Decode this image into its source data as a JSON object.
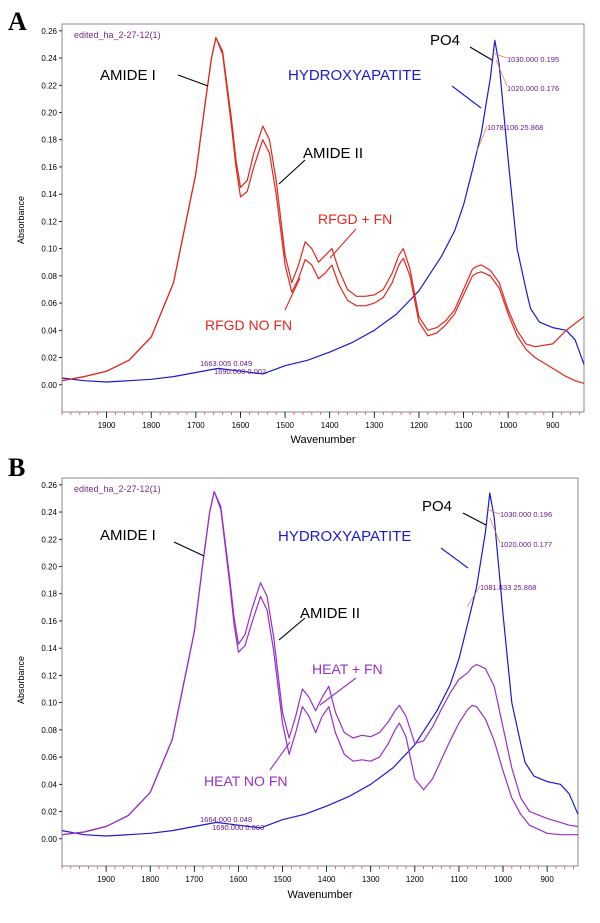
{
  "chart_data": [
    {
      "panel": "A",
      "type": "line",
      "note": "edited_ha_2-27-12(1)",
      "xlabel": "Wavenumber",
      "ylabel": "Absorbance",
      "xlim": [
        2000,
        830
      ],
      "ylim": [
        -0.02,
        0.265
      ],
      "x_ticks": [
        "1900",
        "1800",
        "1700",
        "1600",
        "1500",
        "1400",
        "1300",
        "1200",
        "1100",
        "1000",
        "900"
      ],
      "y_ticks": [
        "0.00",
        "0.02",
        "0.04",
        "0.06",
        "0.08",
        "0.10",
        "0.12",
        "0.14",
        "0.16",
        "0.18",
        "0.20",
        "0.22",
        "0.24",
        "0.26"
      ],
      "annotations": {
        "amide1": "AMIDE I",
        "amide2": "AMIDE II",
        "po4": "PO4",
        "hydroxyapatite": "HYDROXYAPATITE",
        "with_fn": "RFGD + FN",
        "no_fn": "RFGD NO FN"
      },
      "cursor_labels": [
        "1030.000  0.195",
        "1020.000  0.176",
        "1078.106  25.868",
        "1663.005  0.049",
        "1690.000  0.002"
      ],
      "series": [
        {
          "color": "#1a1ad6",
          "x": [
            2000,
            1950,
            1900,
            1850,
            1800,
            1750,
            1700,
            1650,
            1600,
            1550,
            1500,
            1450,
            1400,
            1350,
            1300,
            1250,
            1200,
            1150,
            1120,
            1100,
            1080,
            1060,
            1050,
            1040,
            1030,
            1020,
            1000,
            980,
            960,
            950,
            930,
            900,
            870,
            850,
            830
          ],
          "y": [
            0.005,
            0.003,
            0.002,
            0.003,
            0.004,
            0.006,
            0.009,
            0.012,
            0.01,
            0.008,
            0.014,
            0.018,
            0.024,
            0.031,
            0.04,
            0.052,
            0.069,
            0.094,
            0.113,
            0.132,
            0.158,
            0.185,
            0.205,
            0.225,
            0.253,
            0.235,
            0.165,
            0.1,
            0.07,
            0.056,
            0.046,
            0.042,
            0.04,
            0.033,
            0.015
          ]
        },
        {
          "color": "#e0281e",
          "x": [
            2000,
            1950,
            1900,
            1850,
            1800,
            1750,
            1700,
            1680,
            1665,
            1655,
            1640,
            1620,
            1610,
            1600,
            1585,
            1570,
            1550,
            1535,
            1520,
            1500,
            1485,
            1470,
            1455,
            1440,
            1425,
            1410,
            1395,
            1380,
            1360,
            1340,
            1320,
            1300,
            1280,
            1260,
            1245,
            1235,
            1220,
            1200,
            1180,
            1160,
            1140,
            1120,
            1100,
            1080,
            1070,
            1060,
            1040,
            1020,
            1000,
            980,
            960,
            940,
            900,
            870,
            850,
            830
          ],
          "y": [
            0.003,
            0.006,
            0.01,
            0.018,
            0.035,
            0.075,
            0.155,
            0.205,
            0.24,
            0.255,
            0.245,
            0.195,
            0.165,
            0.145,
            0.15,
            0.17,
            0.19,
            0.18,
            0.15,
            0.095,
            0.075,
            0.088,
            0.105,
            0.1,
            0.09,
            0.095,
            0.1,
            0.085,
            0.07,
            0.065,
            0.065,
            0.066,
            0.07,
            0.082,
            0.095,
            0.1,
            0.085,
            0.05,
            0.04,
            0.042,
            0.047,
            0.055,
            0.07,
            0.085,
            0.087,
            0.088,
            0.084,
            0.075,
            0.055,
            0.04,
            0.03,
            0.028,
            0.03,
            0.04,
            0.045,
            0.05
          ]
        },
        {
          "color": "#e0281e",
          "x": [
            2000,
            1950,
            1900,
            1850,
            1800,
            1750,
            1700,
            1680,
            1665,
            1655,
            1640,
            1620,
            1610,
            1600,
            1585,
            1570,
            1550,
            1535,
            1520,
            1500,
            1485,
            1470,
            1455,
            1440,
            1425,
            1410,
            1395,
            1380,
            1360,
            1340,
            1320,
            1300,
            1280,
            1260,
            1245,
            1235,
            1220,
            1200,
            1180,
            1160,
            1140,
            1120,
            1100,
            1080,
            1070,
            1060,
            1040,
            1020,
            1000,
            980,
            960,
            940,
            900,
            870,
            850,
            830
          ],
          "y": [
            0.003,
            0.006,
            0.01,
            0.018,
            0.035,
            0.075,
            0.155,
            0.205,
            0.24,
            0.255,
            0.243,
            0.19,
            0.16,
            0.138,
            0.142,
            0.16,
            0.18,
            0.17,
            0.14,
            0.088,
            0.068,
            0.078,
            0.092,
            0.088,
            0.078,
            0.082,
            0.088,
            0.074,
            0.062,
            0.058,
            0.058,
            0.06,
            0.064,
            0.075,
            0.088,
            0.093,
            0.08,
            0.046,
            0.036,
            0.038,
            0.044,
            0.052,
            0.066,
            0.08,
            0.082,
            0.083,
            0.08,
            0.071,
            0.052,
            0.036,
            0.026,
            0.02,
            0.012,
            0.006,
            0.003,
            0.001
          ]
        }
      ]
    },
    {
      "panel": "B",
      "type": "line",
      "note": "edited_ha_2-27-12(1)",
      "xlabel": "Wavenumber",
      "ylabel": "Absorbance",
      "xlim": [
        2000,
        830
      ],
      "ylim": [
        -0.02,
        0.265
      ],
      "x_ticks": [
        "1900",
        "1800",
        "1700",
        "1600",
        "1500",
        "1400",
        "1300",
        "1200",
        "1100",
        "1000",
        "900"
      ],
      "y_ticks": [
        "0.00",
        "0.02",
        "0.04",
        "0.06",
        "0.08",
        "0.10",
        "0.12",
        "0.14",
        "0.16",
        "0.18",
        "0.20",
        "0.22",
        "0.24",
        "0.26"
      ],
      "annotations": {
        "amide1": "AMIDE I",
        "amide2": "AMIDE II",
        "po4": "PO4",
        "hydroxyapatite": "HYDROXYAPATITE",
        "with_fn": "HEAT + FN",
        "no_fn": "HEAT NO FN"
      },
      "cursor_labels": [
        "1030.000  0.196",
        "1020.000  0.177",
        "1081.833  25.868",
        "1664.000  0.048",
        "1690.000  0.003"
      ],
      "series": [
        {
          "color": "#1a1ad6",
          "x": [
            2000,
            1950,
            1900,
            1850,
            1800,
            1750,
            1700,
            1650,
            1600,
            1550,
            1500,
            1450,
            1400,
            1350,
            1300,
            1250,
            1200,
            1150,
            1120,
            1100,
            1080,
            1060,
            1050,
            1040,
            1030,
            1020,
            1000,
            980,
            960,
            950,
            930,
            900,
            870,
            850,
            830
          ],
          "y": [
            0.006,
            0.003,
            0.002,
            0.003,
            0.004,
            0.006,
            0.009,
            0.012,
            0.01,
            0.008,
            0.014,
            0.018,
            0.024,
            0.031,
            0.04,
            0.052,
            0.069,
            0.094,
            0.113,
            0.132,
            0.158,
            0.185,
            0.205,
            0.225,
            0.254,
            0.236,
            0.165,
            0.1,
            0.07,
            0.056,
            0.046,
            0.042,
            0.04,
            0.033,
            0.018
          ]
        },
        {
          "color": "#9a2ec8",
          "x": [
            2000,
            1950,
            1900,
            1850,
            1800,
            1750,
            1700,
            1680,
            1665,
            1655,
            1640,
            1620,
            1610,
            1600,
            1585,
            1570,
            1550,
            1535,
            1520,
            1500,
            1485,
            1470,
            1455,
            1440,
            1425,
            1410,
            1395,
            1380,
            1360,
            1340,
            1320,
            1300,
            1280,
            1260,
            1245,
            1235,
            1220,
            1200,
            1180,
            1160,
            1140,
            1120,
            1100,
            1080,
            1070,
            1060,
            1040,
            1020,
            1000,
            980,
            960,
            940,
            900,
            870,
            850,
            830
          ],
          "y": [
            0.003,
            0.005,
            0.009,
            0.017,
            0.034,
            0.073,
            0.152,
            0.204,
            0.24,
            0.255,
            0.244,
            0.192,
            0.163,
            0.143,
            0.15,
            0.168,
            0.188,
            0.178,
            0.148,
            0.093,
            0.074,
            0.09,
            0.11,
            0.104,
            0.094,
            0.104,
            0.112,
            0.093,
            0.078,
            0.074,
            0.076,
            0.075,
            0.078,
            0.086,
            0.094,
            0.098,
            0.09,
            0.07,
            0.072,
            0.082,
            0.095,
            0.107,
            0.117,
            0.122,
            0.126,
            0.128,
            0.125,
            0.112,
            0.082,
            0.052,
            0.03,
            0.02,
            0.015,
            0.012,
            0.01,
            0.009
          ]
        },
        {
          "color": "#9a2ec8",
          "x": [
            2000,
            1950,
            1900,
            1850,
            1800,
            1750,
            1700,
            1680,
            1665,
            1655,
            1640,
            1620,
            1610,
            1600,
            1585,
            1570,
            1550,
            1535,
            1520,
            1500,
            1485,
            1470,
            1455,
            1440,
            1425,
            1410,
            1395,
            1380,
            1360,
            1340,
            1320,
            1300,
            1280,
            1260,
            1245,
            1235,
            1220,
            1200,
            1180,
            1160,
            1140,
            1120,
            1100,
            1080,
            1070,
            1060,
            1040,
            1020,
            1000,
            980,
            960,
            940,
            900,
            870,
            850,
            830
          ],
          "y": [
            0.003,
            0.005,
            0.009,
            0.017,
            0.034,
            0.073,
            0.152,
            0.204,
            0.24,
            0.255,
            0.242,
            0.188,
            0.158,
            0.137,
            0.142,
            0.158,
            0.178,
            0.168,
            0.138,
            0.085,
            0.062,
            0.078,
            0.097,
            0.09,
            0.078,
            0.09,
            0.097,
            0.078,
            0.062,
            0.057,
            0.058,
            0.057,
            0.06,
            0.07,
            0.08,
            0.085,
            0.075,
            0.044,
            0.036,
            0.044,
            0.058,
            0.072,
            0.085,
            0.095,
            0.098,
            0.097,
            0.088,
            0.072,
            0.05,
            0.03,
            0.018,
            0.01,
            0.004,
            0.003,
            0.003,
            0.003
          ]
        }
      ]
    }
  ]
}
